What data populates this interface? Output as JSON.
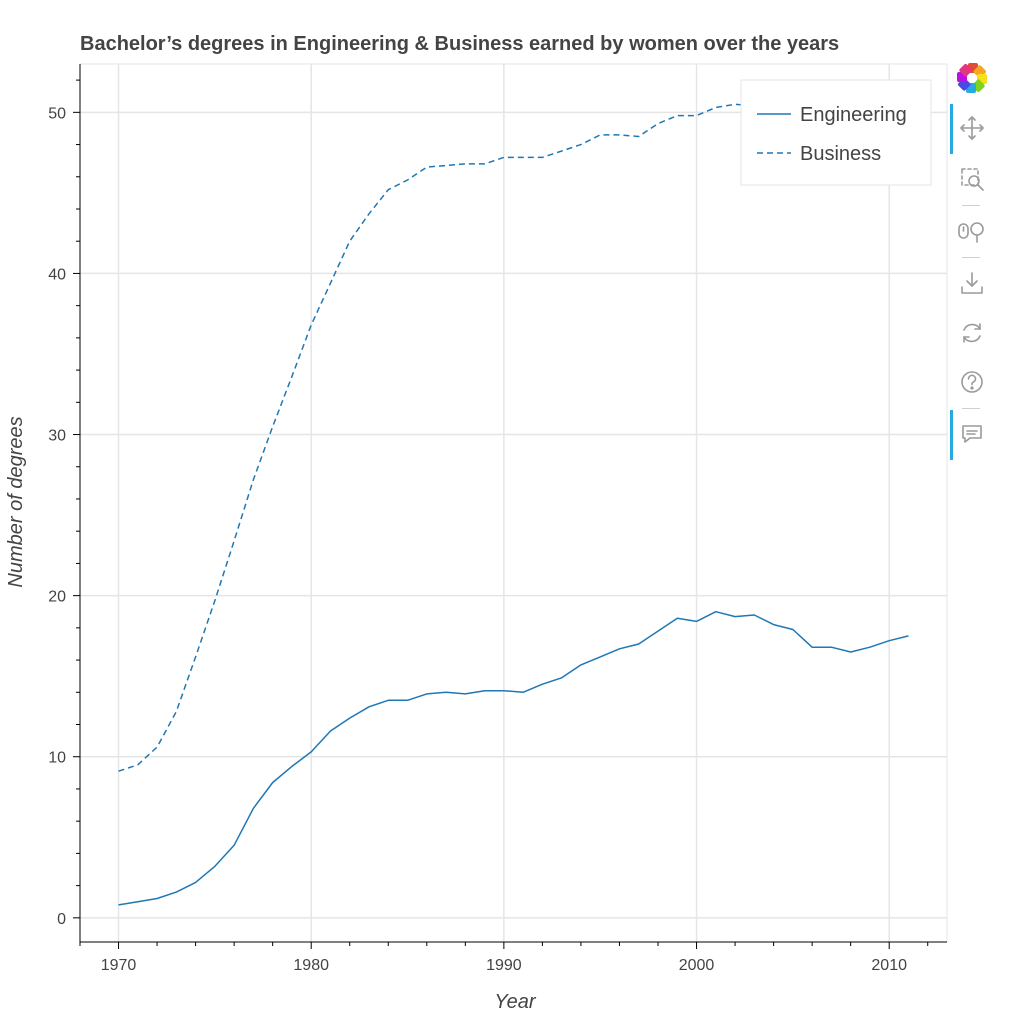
{
  "chart_data": {
    "type": "line",
    "title": "Bachelor’s degrees in Engineering & Business earned by women over the years",
    "xlabel": "Year",
    "ylabel": "Number of degrees",
    "xlim": [
      1968,
      2013
    ],
    "ylim": [
      -1.5,
      53
    ],
    "x_ticks": [
      1970,
      1980,
      1990,
      2000,
      2010
    ],
    "y_ticks": [
      0,
      10,
      20,
      30,
      40,
      50
    ],
    "grid": true,
    "legend_position": "top-right",
    "x": [
      1970,
      1971,
      1972,
      1973,
      1974,
      1975,
      1976,
      1977,
      1978,
      1979,
      1980,
      1981,
      1982,
      1983,
      1984,
      1985,
      1986,
      1987,
      1988,
      1989,
      1990,
      1991,
      1992,
      1993,
      1994,
      1995,
      1996,
      1997,
      1998,
      1999,
      2000,
      2001,
      2002,
      2003,
      2004,
      2005,
      2006,
      2007,
      2008,
      2009,
      2010,
      2011
    ],
    "series": [
      {
        "name": "Engineering",
        "style": "solid",
        "color": "#1f77b4",
        "values": [
          0.8,
          1.0,
          1.2,
          1.6,
          2.2,
          3.2,
          4.5,
          6.8,
          8.4,
          9.4,
          10.3,
          11.6,
          12.4,
          13.1,
          13.5,
          13.5,
          13.9,
          14.0,
          13.9,
          14.1,
          14.1,
          14.0,
          14.5,
          14.9,
          15.7,
          16.2,
          16.7,
          17.0,
          17.8,
          18.6,
          18.4,
          19.0,
          18.7,
          18.8,
          18.2,
          17.9,
          16.8,
          16.8,
          16.5,
          16.8,
          17.2,
          17.5
        ]
      },
      {
        "name": "Business",
        "style": "dashed",
        "color": "#1f77b4",
        "values": [
          9.1,
          9.5,
          10.6,
          12.8,
          16.2,
          19.7,
          23.4,
          27.2,
          30.5,
          33.6,
          36.8,
          39.4,
          42.0,
          43.7,
          45.2,
          45.8,
          46.6,
          46.7,
          46.8,
          46.8,
          47.2,
          47.2,
          47.2,
          47.6,
          48.0,
          48.6,
          48.6,
          48.5,
          49.3,
          49.8,
          49.8,
          50.3,
          50.5,
          50.4,
          50.2,
          49.9,
          49.7,
          49.4,
          49.0,
          48.9,
          48.8,
          48.4
        ]
      }
    ]
  },
  "toolbar": {
    "logo": "bokeh-logo-icon",
    "tools": [
      "pan-icon",
      "box-zoom-icon",
      "wheel-zoom-icon",
      "save-icon",
      "reset-icon",
      "help-icon",
      "hover-icon"
    ],
    "accent_color": "#26aae1"
  }
}
